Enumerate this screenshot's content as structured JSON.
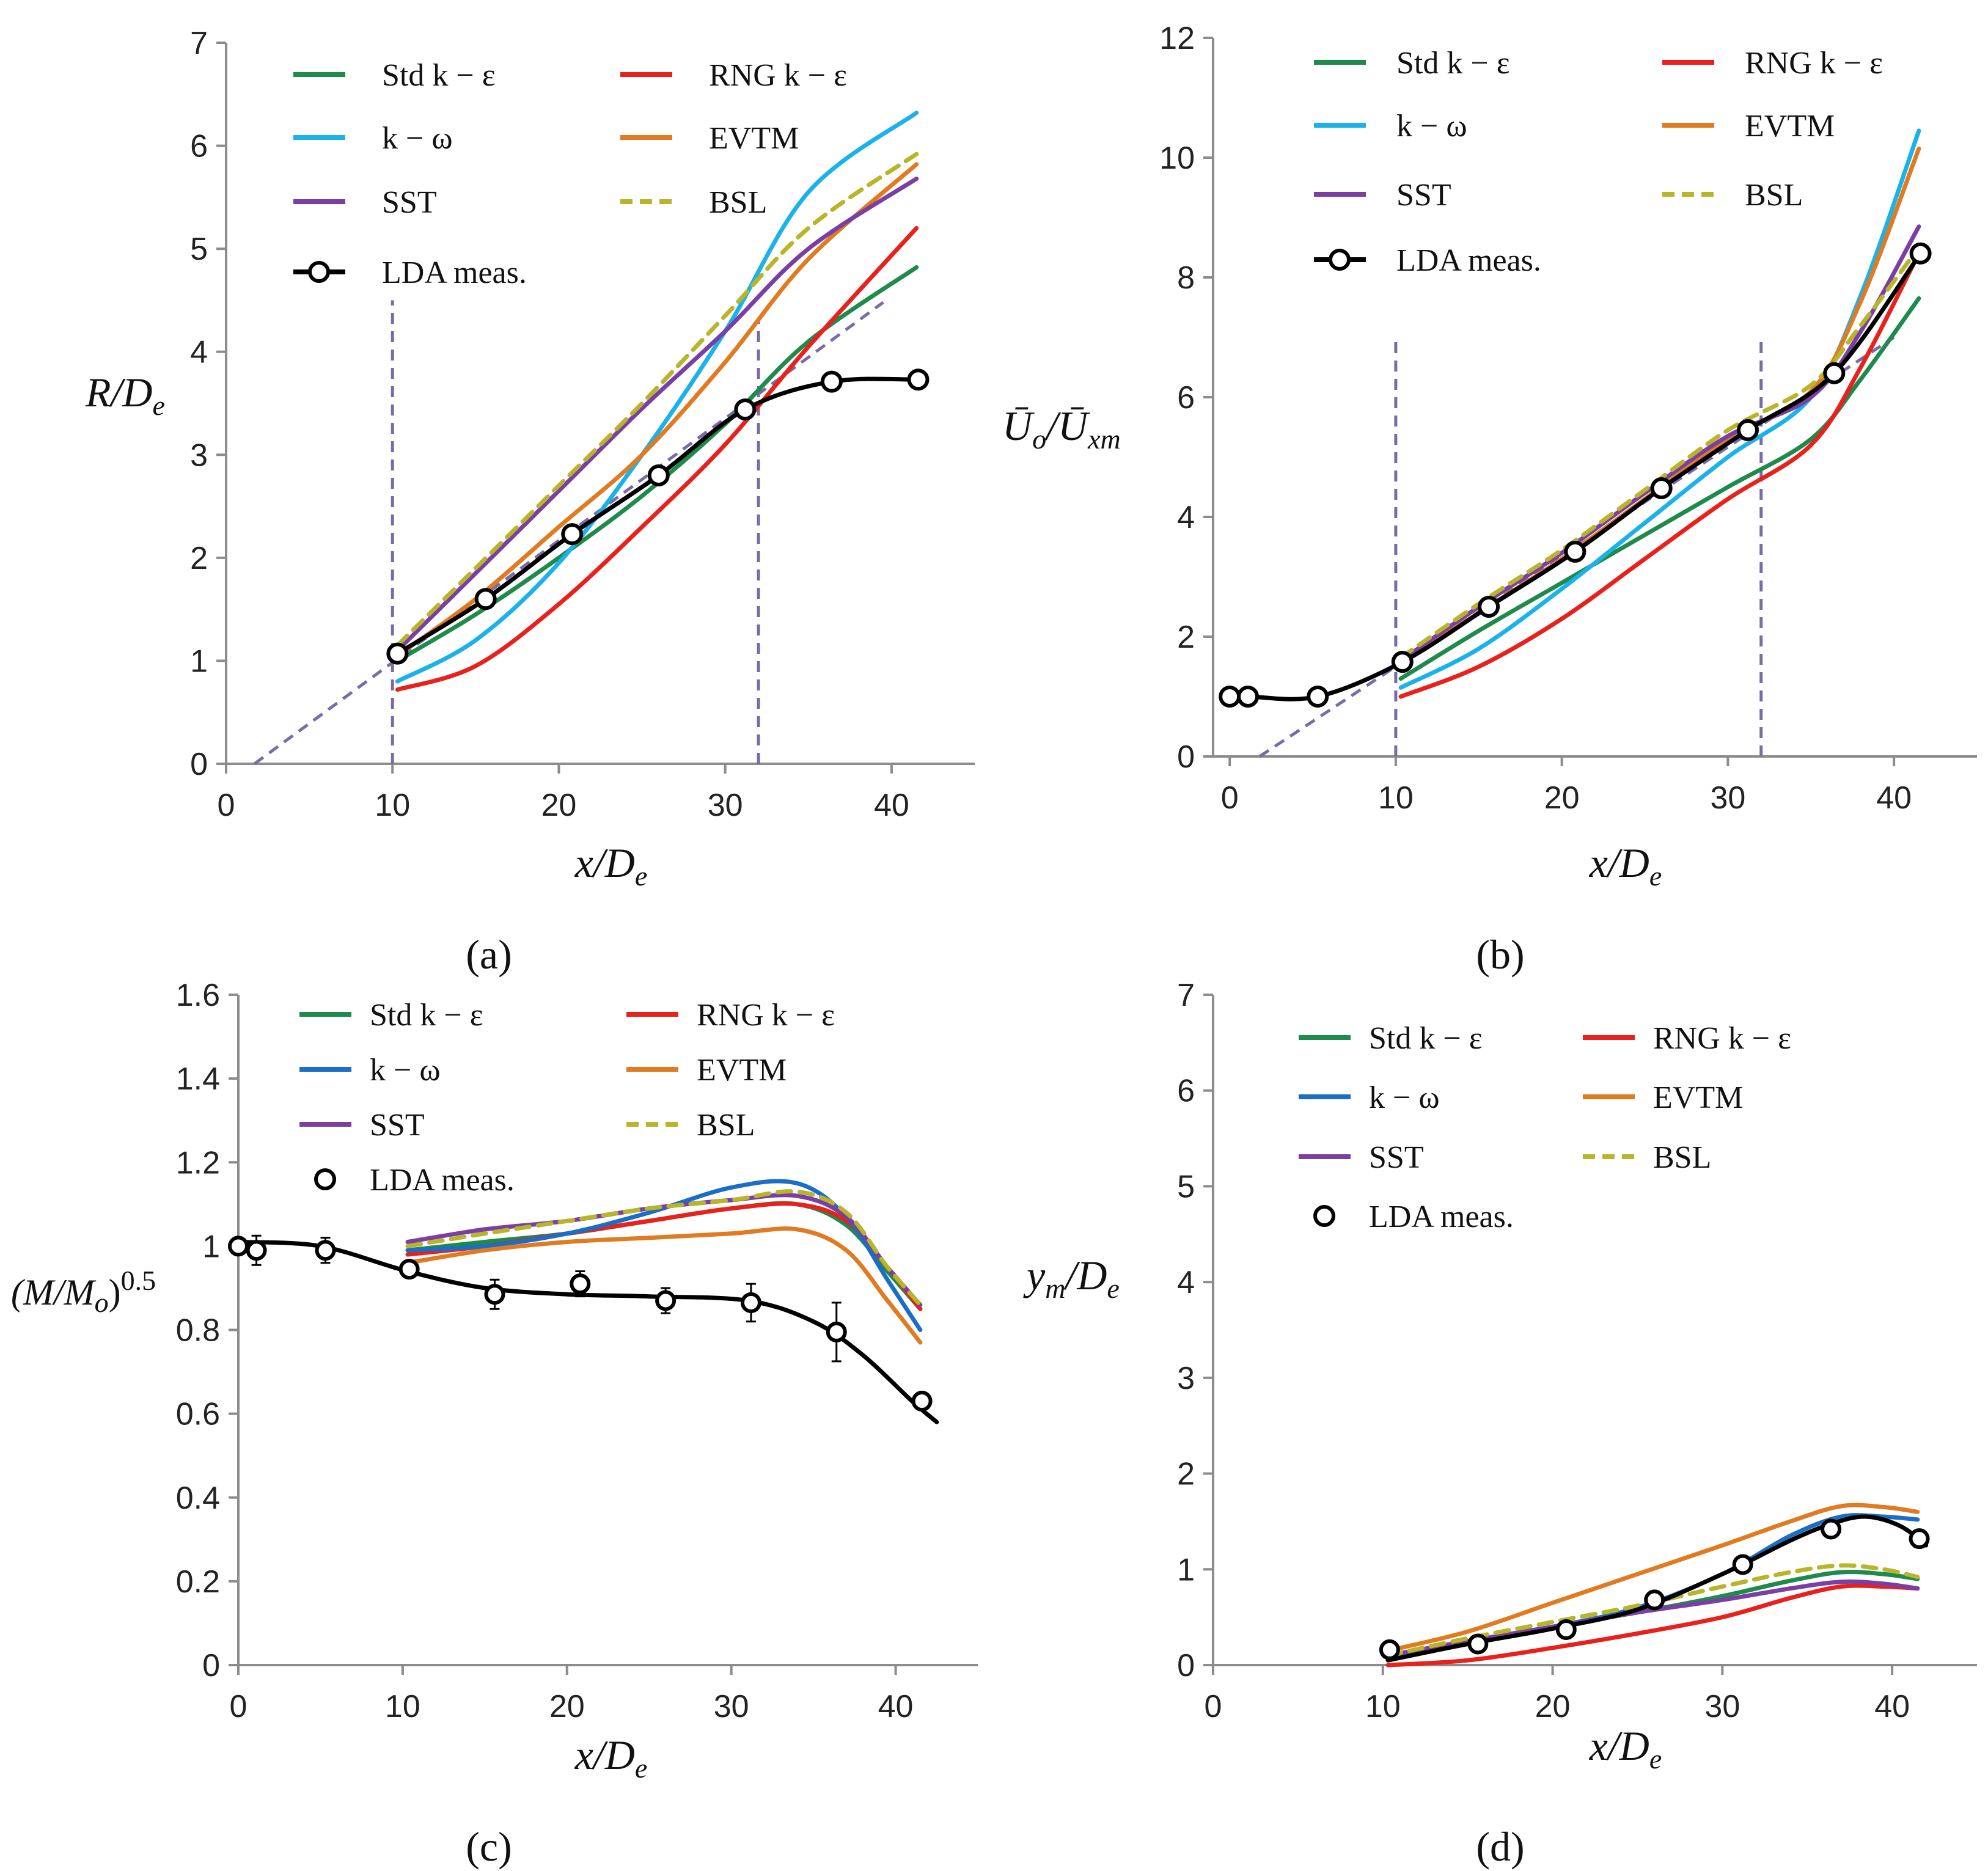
{
  "panels_labels": [
    "(a)",
    "(b)",
    "(c)",
    "(d)"
  ],
  "chart_data": [
    {
      "id": "a",
      "type": "line",
      "label": "(a)",
      "xlabel": "x/D",
      "xlabel_sub": "e",
      "ylabel": "R/D",
      "ylabel_sub": "e",
      "xlim": [
        0,
        45
      ],
      "ylim": [
        0,
        7
      ],
      "xticks": [
        0,
        10,
        20,
        30,
        40
      ],
      "yticks": [
        0,
        1,
        2,
        3,
        4,
        5,
        6,
        7
      ],
      "legend": [
        "Std k − ε",
        "RNG k − ε",
        "k − ω",
        "EVTM",
        "SST",
        "BSL",
        "LDA meas."
      ],
      "series": [
        {
          "name": "Std k − ε",
          "color": "#1e8a4c",
          "dash": false,
          "x": [
            10.3,
            15,
            20,
            25,
            30,
            35,
            41.5
          ],
          "y": [
            1.0,
            1.45,
            2.0,
            2.6,
            3.3,
            4.1,
            4.82
          ]
        },
        {
          "name": "RNG k − ε",
          "color": "#e8211d",
          "dash": false,
          "x": [
            10.3,
            15,
            20,
            25,
            30,
            35,
            41.5
          ],
          "y": [
            0.72,
            0.95,
            1.55,
            2.3,
            3.1,
            4.05,
            5.2
          ]
        },
        {
          "name": "k − ω",
          "color": "#1ab2e8",
          "dash": false,
          "x": [
            10.3,
            15,
            20,
            25,
            30,
            35,
            41.5
          ],
          "y": [
            0.8,
            1.2,
            1.95,
            3.0,
            4.2,
            5.55,
            6.32
          ]
        },
        {
          "name": "EVTM",
          "color": "#e07b22",
          "dash": false,
          "x": [
            10.3,
            15,
            20,
            25,
            30,
            35,
            41.5
          ],
          "y": [
            1.05,
            1.6,
            2.3,
            3.0,
            3.9,
            4.9,
            5.82
          ]
        },
        {
          "name": "SST",
          "color": "#7b3fa3",
          "dash": false,
          "x": [
            10.3,
            15,
            20,
            25,
            30,
            35,
            41.5
          ],
          "y": [
            1.1,
            1.85,
            2.65,
            3.45,
            4.2,
            5.0,
            5.68
          ]
        },
        {
          "name": "BSL",
          "color": "#b8b52a",
          "dash": true,
          "x": [
            10.3,
            15,
            20,
            25,
            30,
            35,
            41.5
          ],
          "y": [
            1.15,
            1.9,
            2.7,
            3.5,
            4.35,
            5.2,
            5.92
          ]
        },
        {
          "name": "LDA meas.",
          "color": "#000000",
          "dash": false,
          "markers": true,
          "x": [
            10.3,
            15.6,
            20.8,
            26,
            31.2,
            36.4,
            41.6
          ],
          "y": [
            1.07,
            1.6,
            2.23,
            2.8,
            3.44,
            3.71,
            3.73
          ]
        }
      ],
      "reference_lines": [
        {
          "x": [
            1.7,
            39.5
          ],
          "y": [
            0,
            4.48
          ]
        },
        {
          "x": [
            10,
            10
          ],
          "y": [
            0,
            4.5
          ]
        },
        {
          "x": [
            32,
            32
          ],
          "y": [
            0,
            4.3
          ]
        }
      ]
    },
    {
      "id": "b",
      "type": "line",
      "label": "(b)",
      "xlabel": "x/D",
      "xlabel_sub": "e",
      "ylabel": "Ū",
      "ylabel_mid": "/Ū",
      "ylabel_sub1": "o",
      "ylabel_sub2": "xm",
      "xlim": [
        -1,
        45
      ],
      "ylim": [
        0,
        12
      ],
      "xticks": [
        0,
        10,
        20,
        30,
        40
      ],
      "yticks": [
        0,
        2,
        4,
        6,
        8,
        10,
        12
      ],
      "legend": [
        "Std k − ε",
        "RNG k − ε",
        "k − ω",
        "EVTM",
        "SST",
        "BSL",
        "LDA meas."
      ],
      "series": [
        {
          "name": "Std k − ε",
          "color": "#1e8a4c",
          "dash": false,
          "x": [
            10.3,
            15,
            20,
            25,
            30,
            35,
            38,
            41.5
          ],
          "y": [
            1.3,
            2.1,
            2.9,
            3.7,
            4.5,
            5.3,
            6.3,
            7.65
          ]
        },
        {
          "name": "RNG k − ε",
          "color": "#e8211d",
          "dash": false,
          "x": [
            10.3,
            15,
            20,
            25,
            30,
            35,
            38,
            41.5
          ],
          "y": [
            1.0,
            1.5,
            2.3,
            3.3,
            4.3,
            5.2,
            6.5,
            8.4
          ]
        },
        {
          "name": "k − ω",
          "color": "#1ab2e8",
          "dash": false,
          "x": [
            10.3,
            15,
            20,
            25,
            30,
            35,
            38,
            41.5
          ],
          "y": [
            1.15,
            1.8,
            2.8,
            3.9,
            5.0,
            6.0,
            7.7,
            10.45
          ]
        },
        {
          "name": "EVTM",
          "color": "#e07b22",
          "dash": false,
          "x": [
            10.3,
            15,
            20,
            25,
            30,
            35,
            38,
            41.5
          ],
          "y": [
            1.55,
            2.4,
            3.3,
            4.3,
            5.3,
            6.1,
            7.6,
            10.15
          ]
        },
        {
          "name": "SST",
          "color": "#7b3fa3",
          "dash": false,
          "x": [
            10.3,
            15,
            20,
            25,
            30,
            35,
            38,
            41.5
          ],
          "y": [
            1.6,
            2.5,
            3.4,
            4.4,
            5.35,
            6.0,
            7.1,
            8.85
          ]
        },
        {
          "name": "BSL",
          "color": "#b8b52a",
          "dash": true,
          "x": [
            10.3,
            15,
            20,
            25,
            30,
            35,
            38,
            41.5
          ],
          "y": [
            1.65,
            2.55,
            3.45,
            4.45,
            5.45,
            6.2,
            7.2,
            8.5
          ]
        },
        {
          "name": "LDA meas.",
          "color": "#000000",
          "dash": false,
          "markers": true,
          "x": [
            0,
            1.1,
            5.3,
            10.4,
            15.6,
            20.8,
            26,
            31.2,
            36.4,
            41.6
          ],
          "y": [
            1.0,
            1.0,
            1.0,
            1.58,
            2.5,
            3.42,
            4.48,
            5.45,
            6.4,
            8.4
          ]
        }
      ],
      "reference_lines": [
        {
          "x": [
            1.8,
            40
          ],
          "y": [
            0,
            7.0
          ]
        },
        {
          "x": [
            10,
            10
          ],
          "y": [
            0,
            7
          ]
        },
        {
          "x": [
            32,
            32
          ],
          "y": [
            0,
            7
          ]
        }
      ]
    },
    {
      "id": "c",
      "type": "line",
      "label": "(c)",
      "xlabel": "x/D",
      "xlabel_sub": "e",
      "ylabel": "(M/M",
      "ylabel_sub": "o",
      "ylabel_tail": ")",
      "ylabel_sup": "0.5",
      "xlim": [
        0,
        45
      ],
      "ylim": [
        0,
        1.6
      ],
      "xticks": [
        0,
        10,
        20,
        30,
        40
      ],
      "yticks": [
        0,
        0.2,
        0.4,
        0.6,
        0.8,
        1,
        1.2,
        1.4,
        1.6
      ],
      "ytick_labels": [
        "0",
        "0.2",
        "0.4",
        "0.6",
        "0.8",
        "1",
        "1.2",
        "1.4",
        "1.6"
      ],
      "legend": [
        "Std k − ε",
        "RNG k − ε",
        "k − ω",
        "EVTM",
        "SST",
        "BSL",
        "LDA meas."
      ],
      "series": [
        {
          "name": "Std k − ε",
          "color": "#1e8a4c",
          "dash": false,
          "x": [
            10.3,
            15,
            20,
            25,
            30,
            34,
            37,
            39.5,
            41.5
          ],
          "y": [
            0.99,
            1.01,
            1.03,
            1.06,
            1.09,
            1.1,
            1.05,
            0.94,
            0.85
          ]
        },
        {
          "name": "RNG k − ε",
          "color": "#e8211d",
          "dash": false,
          "x": [
            10.3,
            15,
            20,
            25,
            30,
            34,
            37,
            39.5,
            41.5
          ],
          "y": [
            0.98,
            1.0,
            1.03,
            1.06,
            1.09,
            1.1,
            1.06,
            0.95,
            0.85
          ]
        },
        {
          "name": "k − ω",
          "color": "#1a6ec7",
          "dash": false,
          "x": [
            10.3,
            15,
            20,
            25,
            30,
            34,
            37,
            39.5,
            41.5
          ],
          "y": [
            0.99,
            1.0,
            1.03,
            1.08,
            1.14,
            1.15,
            1.07,
            0.92,
            0.8
          ]
        },
        {
          "name": "EVTM",
          "color": "#e07b22",
          "dash": false,
          "x": [
            10.3,
            15,
            20,
            25,
            30,
            34,
            37,
            39.5,
            41.5
          ],
          "y": [
            0.96,
            0.99,
            1.01,
            1.02,
            1.03,
            1.04,
            0.99,
            0.87,
            0.77
          ]
        },
        {
          "name": "SST",
          "color": "#7b3fa3",
          "dash": false,
          "x": [
            10.3,
            15,
            20,
            25,
            30,
            34,
            37,
            39.5,
            41.5
          ],
          "y": [
            1.01,
            1.04,
            1.06,
            1.09,
            1.11,
            1.12,
            1.07,
            0.95,
            0.86
          ]
        },
        {
          "name": "BSL",
          "color": "#b8b52a",
          "dash": true,
          "x": [
            10.3,
            15,
            20,
            25,
            30,
            34,
            37,
            39.5,
            41.5
          ],
          "y": [
            1.0,
            1.03,
            1.06,
            1.09,
            1.11,
            1.13,
            1.08,
            0.95,
            0.86
          ]
        },
        {
          "name": "LDA meas.",
          "color": "#000000",
          "dash": false,
          "x": [
            0,
            5,
            10.3,
            15,
            20,
            25,
            31,
            35,
            38,
            41,
            42.5
          ],
          "y": [
            1.01,
            1.0,
            0.94,
            0.9,
            0.885,
            0.88,
            0.87,
            0.82,
            0.74,
            0.63,
            0.58
          ]
        }
      ],
      "markers": {
        "x": [
          0,
          1.1,
          5.3,
          10.4,
          15.6,
          20.8,
          26,
          31.2,
          36.4,
          41.6
        ],
        "y": [
          1.0,
          0.99,
          0.99,
          0.945,
          0.885,
          0.91,
          0.87,
          0.865,
          0.795,
          0.63
        ],
        "err": [
          0.0,
          0.035,
          0.03,
          0.02,
          0.035,
          0.03,
          0.03,
          0.045,
          0.07,
          0.0
        ]
      }
    },
    {
      "id": "d",
      "type": "line",
      "label": "(d)",
      "xlabel": "x/D",
      "xlabel_sub": "e",
      "ylabel": "y",
      "ylabel_sub": "m",
      "ylabel_mid": "/D",
      "ylabel_sub2": "e",
      "xlim": [
        0,
        45
      ],
      "ylim": [
        0,
        7
      ],
      "xticks": [
        0,
        10,
        20,
        30,
        40
      ],
      "yticks": [
        0,
        1,
        2,
        3,
        4,
        5,
        6,
        7
      ],
      "legend": [
        "Std k − ε",
        "RNG k − ε",
        "k − ω",
        "EVTM",
        "SST",
        "BSL",
        "LDA meas."
      ],
      "series": [
        {
          "name": "Std k − ε",
          "color": "#1e8a4c",
          "dash": false,
          "x": [
            10.3,
            15,
            20,
            25,
            30,
            34,
            37,
            39.5,
            41.5
          ],
          "y": [
            0.1,
            0.25,
            0.4,
            0.55,
            0.72,
            0.88,
            0.97,
            0.95,
            0.9
          ]
        },
        {
          "name": "RNG k − ε",
          "color": "#e8211d",
          "dash": false,
          "x": [
            10.3,
            15,
            20,
            25,
            30,
            34,
            37,
            39.5,
            41.5
          ],
          "y": [
            0.0,
            0.05,
            0.18,
            0.33,
            0.5,
            0.7,
            0.82,
            0.82,
            0.8
          ]
        },
        {
          "name": "k − ω",
          "color": "#1a6ec7",
          "dash": false,
          "x": [
            10.3,
            15,
            20,
            25,
            30,
            34,
            37,
            39.5,
            41.5
          ],
          "y": [
            0.1,
            0.25,
            0.4,
            0.6,
            0.95,
            1.35,
            1.55,
            1.55,
            1.52
          ]
        },
        {
          "name": "EVTM",
          "color": "#e07b22",
          "dash": false,
          "x": [
            10.3,
            15,
            20,
            25,
            30,
            34,
            37,
            39.5,
            41.5
          ],
          "y": [
            0.15,
            0.35,
            0.65,
            0.95,
            1.25,
            1.5,
            1.66,
            1.65,
            1.6
          ]
        },
        {
          "name": "SST",
          "color": "#7b3fa3",
          "dash": false,
          "x": [
            10.3,
            15,
            20,
            25,
            30,
            34,
            37,
            39.5,
            41.5
          ],
          "y": [
            0.1,
            0.25,
            0.4,
            0.55,
            0.68,
            0.8,
            0.87,
            0.85,
            0.8
          ]
        },
        {
          "name": "BSL",
          "color": "#b8b52a",
          "dash": true,
          "x": [
            10.3,
            15,
            20,
            25,
            30,
            34,
            37,
            39.5,
            41.5
          ],
          "y": [
            0.1,
            0.28,
            0.45,
            0.62,
            0.82,
            0.97,
            1.04,
            1.0,
            0.92
          ]
        },
        {
          "name": "LDA meas.",
          "color": "#000000",
          "dash": false,
          "x": [
            10.3,
            15,
            20,
            25,
            30,
            34,
            36.5,
            38.5,
            40.5,
            42
          ],
          "y": [
            0.05,
            0.22,
            0.38,
            0.58,
            0.95,
            1.3,
            1.48,
            1.55,
            1.45,
            1.25
          ]
        }
      ],
      "markers": {
        "x": [
          10.4,
          15.6,
          20.8,
          26,
          31.2,
          36.4,
          41.6
        ],
        "y": [
          0.16,
          0.22,
          0.37,
          0.68,
          1.05,
          1.42,
          1.32
        ]
      }
    }
  ]
}
